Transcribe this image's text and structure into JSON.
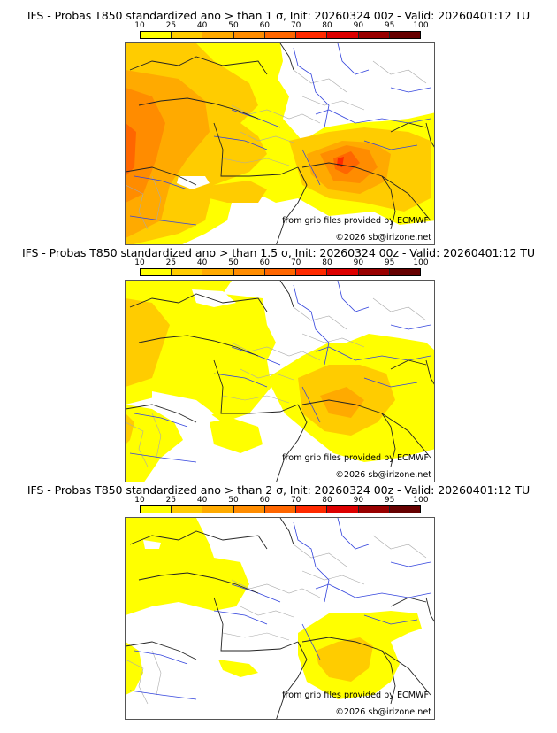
{
  "colorbar": {
    "ticks": [
      "10",
      "25",
      "40",
      "50",
      "60",
      "70",
      "80",
      "90",
      "95",
      "100"
    ],
    "colors": [
      "#ffff00",
      "#ffcc00",
      "#ffaa00",
      "#ff8c00",
      "#ff6600",
      "#ff2a00",
      "#dd0000",
      "#990000",
      "#660000"
    ]
  },
  "panels": [
    {
      "title": "IFS - Probas T850  standardized ano > than 1 σ, Init: 20260324 00z - Valid: 20260401:12 TU",
      "threshold_sigma": 1,
      "credit_source": "from grib files provided by ECMWF",
      "credit_copyright": "©2026 sb@irizone.net"
    },
    {
      "title": "IFS - Probas T850  standardized ano > than 1.5 σ, Init: 20260324 00z - Valid: 20260401:12 TU",
      "threshold_sigma": 1.5,
      "credit_source": "from grib files provided by ECMWF",
      "credit_copyright": "©2026 sb@irizone.net"
    },
    {
      "title": "IFS - Probas T850  standardized ano > than 2 σ, Init: 20260324 00z - Valid: 20260401:12 TU",
      "threshold_sigma": 2,
      "credit_source": "from grib files provided by ECMWF",
      "credit_copyright": "©2026 sb@irizone.net"
    }
  ],
  "style": {
    "coast_color": "#222222",
    "river_color": "#3344dd",
    "border_color": "#aaaaaa"
  }
}
